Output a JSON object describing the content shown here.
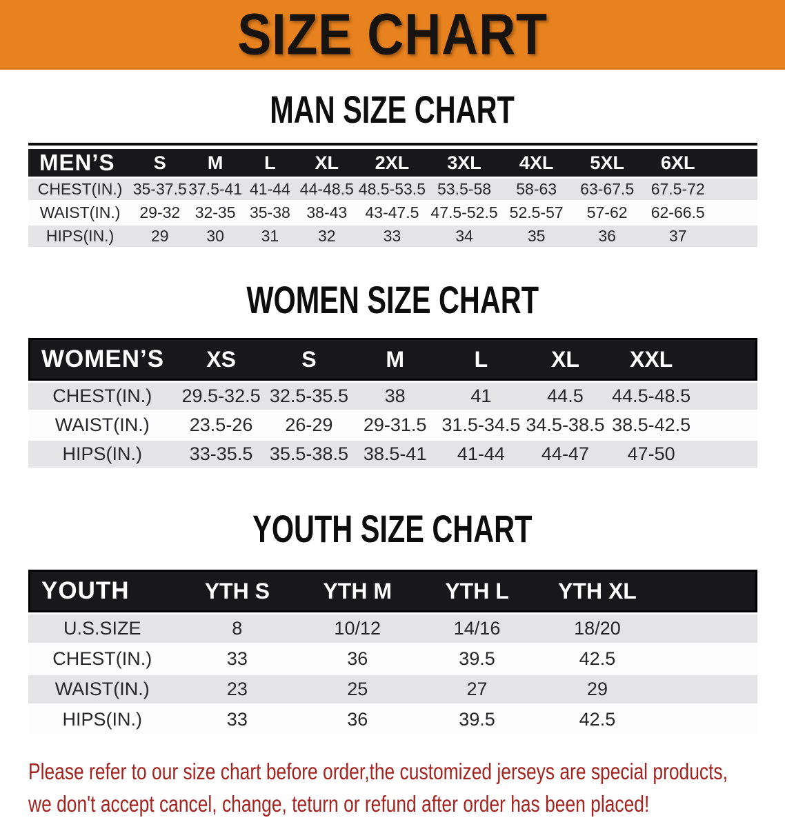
{
  "banner": {
    "title": "SIZE CHART",
    "bg_color": "#e8821f"
  },
  "sections": [
    {
      "title": "MAN SIZE CHART",
      "group_label": "MEN’S",
      "columns": [
        "S",
        "M",
        "L",
        "XL",
        "2XL",
        "3XL",
        "4XL",
        "5XL",
        "6XL"
      ],
      "rows": [
        {
          "label": "CHEST(IN.)",
          "values": [
            "35-37.5",
            "37.5-41",
            "41-44",
            "44-48.5",
            "48.5-53.5",
            "53.5-58",
            "58-63",
            "63-67.5",
            "67.5-72"
          ]
        },
        {
          "label": "WAIST(IN.)",
          "values": [
            "29-32",
            "32-35",
            "35-38",
            "38-43",
            "43-47.5",
            "47.5-52.5",
            "52.5-57",
            "57-62",
            "62-66.5"
          ]
        },
        {
          "label": "HIPS(IN.)",
          "values": [
            "29",
            "30",
            "31",
            "32",
            "33",
            "34",
            "35",
            "36",
            "37"
          ]
        }
      ]
    },
    {
      "title": "WOMEN SIZE CHART",
      "group_label": "WOMEN’S",
      "columns": [
        "XS",
        "S",
        "M",
        "L",
        "XL",
        "XXL"
      ],
      "rows": [
        {
          "label": "CHEST(IN.)",
          "values": [
            "29.5-32.5",
            "32.5-35.5",
            "38",
            "41",
            "44.5",
            "44.5-48.5"
          ]
        },
        {
          "label": "WAIST(IN.)",
          "values": [
            "23.5-26",
            "26-29",
            "29-31.5",
            "31.5-34.5",
            "34.5-38.5",
            "38.5-42.5"
          ]
        },
        {
          "label": "HIPS(IN.)",
          "values": [
            "33-35.5",
            "35.5-38.5",
            "38.5-41",
            "41-44",
            "44-47",
            "47-50"
          ]
        }
      ]
    },
    {
      "title": "YOUTH SIZE CHART",
      "group_label": "YOUTH",
      "columns": [
        "YTH S",
        "YTH M",
        "YTH L",
        "YTH XL"
      ],
      "rows": [
        {
          "label": "U.S.SIZE",
          "values": [
            "8",
            "10/12",
            "14/16",
            "18/20"
          ]
        },
        {
          "label": "CHEST(IN.)",
          "values": [
            "33",
            "36",
            "39.5",
            "42.5"
          ]
        },
        {
          "label": "WAIST(IN.)",
          "values": [
            "23",
            "25",
            "27",
            "29"
          ]
        },
        {
          "label": "HIPS(IN.)",
          "values": [
            "33",
            "36",
            "39.5",
            "42.5"
          ]
        }
      ]
    }
  ],
  "footer": {
    "lines": [
      "Please refer to our size chart before order,the customized jerseys are special products,",
      "we don't accept cancel, change, teturn or refund after order has been placed!"
    ],
    "text_color": "#a4231f"
  },
  "colors": {
    "banner_orange": "#e8821f",
    "header_black": "#18181a",
    "row_stripe_gray": "#e4e4e7",
    "footer_red": "#a4231f"
  }
}
